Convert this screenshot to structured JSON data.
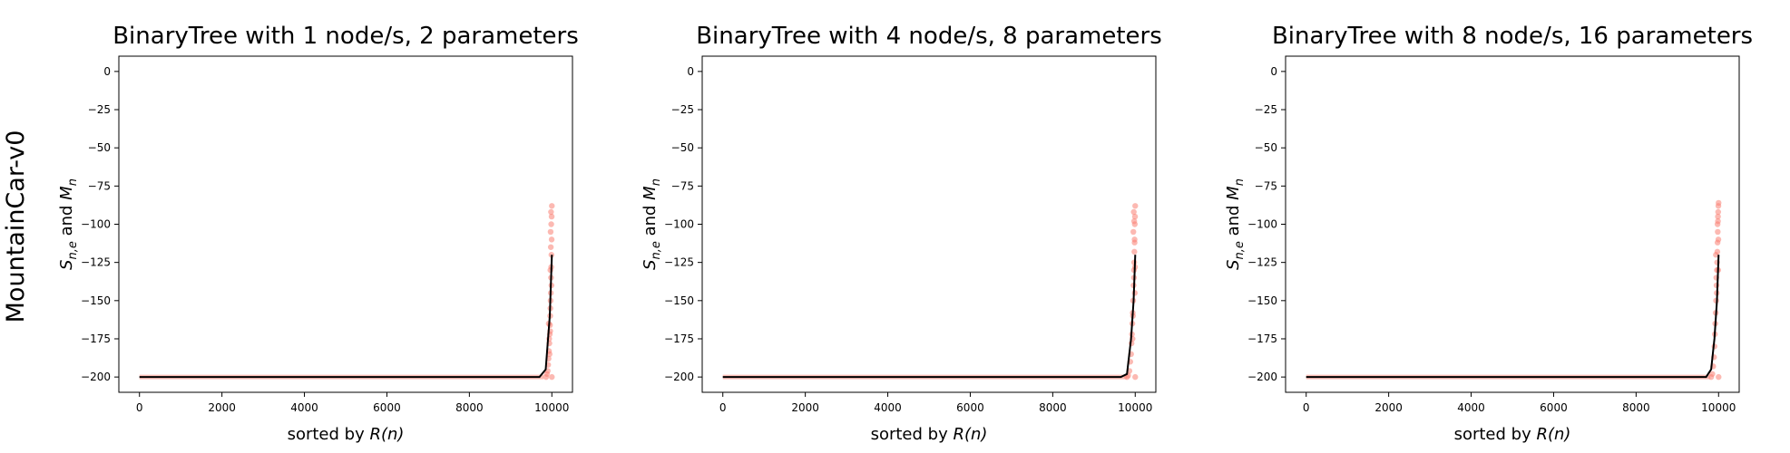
{
  "figure": {
    "row_label": "MountainCar-v0"
  },
  "chart_data": [
    {
      "type": "line",
      "title": "BinaryTree with 1 node/s, 2 parameters",
      "xlabel_prefix": "sorted by ",
      "xlabel_var": "R(n)",
      "ylabel_main_1": "S",
      "ylabel_sub_1": "n,e",
      "ylabel_mid": " and ",
      "ylabel_main_2": "M",
      "ylabel_sub_2": "n",
      "xlim": [
        -500,
        10500
      ],
      "ylim": [
        -210,
        10
      ],
      "xticks": [
        0,
        2000,
        4000,
        6000,
        8000,
        10000
      ],
      "yticks": [
        0,
        -25,
        -50,
        -75,
        -100,
        -125,
        -150,
        -175,
        -200
      ],
      "series": [
        {
          "name": "",
          "color": "#000000",
          "x": [
            0,
            9700,
            9850,
            9950,
            10000
          ],
          "y": [
            -200,
            -200,
            -195,
            -160,
            -120
          ]
        },
        {
          "name": "",
          "color": "#fa8072",
          "marker": "scatter",
          "x": [
            9860,
            9880,
            9900,
            9910,
            9920,
            9930,
            9940,
            9950,
            9955,
            9960,
            9965,
            9970,
            9975,
            9980,
            9985,
            9990,
            9995,
            10000,
            9945,
            9935,
            9925,
            9965,
            9975,
            9985,
            9995,
            9980,
            9970,
            9990,
            10000,
            9960
          ],
          "y": [
            -200,
            -198,
            -196,
            -192,
            -188,
            -183,
            -178,
            -172,
            -166,
            -160,
            -155,
            -150,
            -145,
            -135,
            -128,
            -120,
            -110,
            -88,
            -185,
            -175,
            -165,
            -130,
            -115,
            -100,
            -95,
            -92,
            -105,
            -140,
            -200,
            -170
          ]
        }
      ]
    },
    {
      "type": "line",
      "title": "BinaryTree with 4 node/s, 8 parameters",
      "xlabel_prefix": "sorted by ",
      "xlabel_var": "R(n)",
      "ylabel_main_1": "S",
      "ylabel_sub_1": "n,e",
      "ylabel_mid": " and ",
      "ylabel_main_2": "M",
      "ylabel_sub_2": "n",
      "xlim": [
        -500,
        10500
      ],
      "ylim": [
        -210,
        10
      ],
      "xticks": [
        0,
        2000,
        4000,
        6000,
        8000,
        10000
      ],
      "yticks": [
        0,
        -25,
        -50,
        -75,
        -100,
        -125,
        -150,
        -175,
        -200
      ],
      "series": [
        {
          "name": "",
          "color": "#000000",
          "x": [
            0,
            9650,
            9800,
            9900,
            9960,
            10000
          ],
          "y": [
            -200,
            -200,
            -198,
            -175,
            -150,
            -120
          ]
        },
        {
          "name": "",
          "color": "#fa8072",
          "marker": "scatter",
          "x": [
            9800,
            9830,
            9860,
            9880,
            9900,
            9910,
            9920,
            9930,
            9940,
            9950,
            9960,
            9970,
            9975,
            9980,
            9985,
            9990,
            9995,
            10000,
            9955,
            9965,
            9975,
            9985,
            9995,
            9945,
            9935,
            10000,
            9990,
            9970
          ],
          "y": [
            -200,
            -199,
            -196,
            -190,
            -185,
            -178,
            -172,
            -165,
            -158,
            -150,
            -140,
            -130,
            -125,
            -118,
            -110,
            -100,
            -95,
            -88,
            -105,
            -92,
            -98,
            -112,
            -128,
            -160,
            -175,
            -200,
            -145,
            -135
          ]
        }
      ]
    },
    {
      "type": "line",
      "title": "BinaryTree with 8 node/s, 16 parameters",
      "xlabel_prefix": "sorted by ",
      "xlabel_var": "R(n)",
      "ylabel_main_1": "S",
      "ylabel_sub_1": "n,e",
      "ylabel_mid": " and ",
      "ylabel_main_2": "M",
      "ylabel_sub_2": "n",
      "xlim": [
        -500,
        10500
      ],
      "ylim": [
        -210,
        10
      ],
      "xticks": [
        0,
        2000,
        4000,
        6000,
        8000,
        10000
      ],
      "yticks": [
        0,
        -25,
        -50,
        -75,
        -100,
        -125,
        -150,
        -175,
        -200
      ],
      "series": [
        {
          "name": "",
          "color": "#000000",
          "x": [
            0,
            9700,
            9820,
            9900,
            9960,
            10000
          ],
          "y": [
            -200,
            -200,
            -195,
            -175,
            -150,
            -120
          ]
        },
        {
          "name": "",
          "color": "#fa8072",
          "marker": "scatter",
          "x": [
            9820,
            9850,
            9870,
            9890,
            9900,
            9910,
            9920,
            9930,
            9940,
            9950,
            9960,
            9965,
            9970,
            9975,
            9980,
            9985,
            9990,
            9995,
            10000,
            9955,
            9945,
            9935,
            9975,
            9985,
            9995,
            10000,
            9990
          ],
          "y": [
            -200,
            -198,
            -193,
            -187,
            -180,
            -172,
            -165,
            -158,
            -150,
            -140,
            -130,
            -125,
            -118,
            -112,
            -105,
            -98,
            -92,
            -88,
            -86,
            -145,
            -135,
            -120,
            -100,
            -95,
            -110,
            -200,
            -130
          ]
        }
      ]
    }
  ]
}
